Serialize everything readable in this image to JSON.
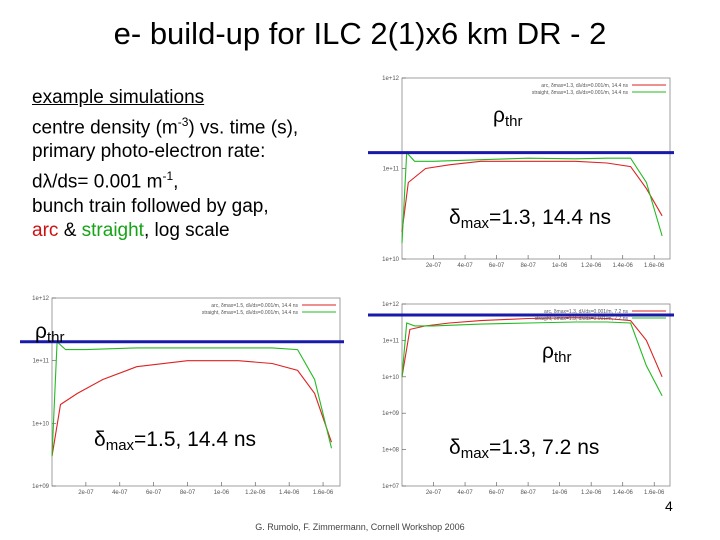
{
  "title": "e- build-up for ILC 2(1)x6 km DR - 2",
  "intro": {
    "line1": "example simulations",
    "line2a": "centre density (m",
    "line2sup": "-3",
    "line2b": ") vs. time (s),",
    "line3": "primary photo-electron rate:",
    "line4a": "dλ/ds= 0.001 m",
    "line4sup": "-1",
    "line4b": ",",
    "line5": "bunch train followed by gap,",
    "arc": "arc",
    "amp": "&",
    "straight": "straight",
    "logscale": ", log scale"
  },
  "labels": {
    "rho_sym": "ρ",
    "rho_sub": "thr",
    "delta_sym": "δ",
    "delta_sub": "max",
    "p1_delta": "=1.3, 14.4 ns",
    "p2_delta": "=1.5, 14.4 ns",
    "p3_delta": "=1.3, 7.2 ns"
  },
  "footer": "G. Rumolo, F. Zimmermann, Cornell Workshop 2006",
  "page_number": "4",
  "colors": {
    "arc": "#dd2222",
    "straight": "#22bb22",
    "threshold": "#1a1aaa"
  },
  "chart_data": [
    {
      "type": "line",
      "legend": [
        "arc, δmax=1.3, dλ/ds=0.001/m, 14.4 ns",
        "straight, δmax=1.3, dλ/ds=0.001/m, 14.4 ns"
      ],
      "legend_position": "top-right",
      "yscale": "log",
      "yticks": [
        "1e+10",
        "1e+11",
        "1e+12"
      ],
      "xticks": [
        "2e-07",
        "4e-07",
        "6e-07",
        "8e-07",
        "1e-06",
        "1.2e-06",
        "1.4e-06",
        "1.6e-06"
      ],
      "xlim": [
        0,
        1.7e-06
      ],
      "ylim": [
        10000000000.0,
        1000000000000.0
      ],
      "threshold": 150000000000.0,
      "series": [
        {
          "name": "arc",
          "x": [
            0,
            4e-08,
            1.5e-07,
            3e-07,
            5e-07,
            8e-07,
            1.1e-06,
            1.3e-06,
            1.45e-06,
            1.55e-06,
            1.65e-06
          ],
          "y": [
            20000000000.0,
            70000000000.0,
            100000000000.0,
            110000000000.0,
            120000000000.0,
            120000000000.0,
            120000000000.0,
            115000000000.0,
            105000000000.0,
            60000000000.0,
            30000000000.0
          ]
        },
        {
          "name": "straight",
          "x": [
            0,
            3e-08,
            8e-08,
            2e-07,
            5e-07,
            8e-07,
            1.1e-06,
            1.3e-06,
            1.45e-06,
            1.55e-06,
            1.65e-06
          ],
          "y": [
            15000000000.0,
            150000000000.0,
            120000000000.0,
            120000000000.0,
            125000000000.0,
            130000000000.0,
            128000000000.0,
            130000000000.0,
            130000000000.0,
            70000000000.0,
            18000000000.0
          ]
        }
      ]
    },
    {
      "type": "line",
      "legend": [
        "arc, δmax=1.5, dλ/ds=0.001/m, 14.4 ns",
        "straight, δmax=1.5, dλ/ds=0.001/m, 14.4 ns"
      ],
      "legend_position": "top-right",
      "yscale": "log",
      "yticks": [
        "1e+09",
        "1e+10",
        "1e+11",
        "1e+12"
      ],
      "xticks": [
        "2e-07",
        "4e-07",
        "6e-07",
        "8e-07",
        "1e-06",
        "1.2e-06",
        "1.4e-06",
        "1.6e-06"
      ],
      "xlim": [
        0,
        1.7e-06
      ],
      "ylim": [
        1000000000.0,
        1000000000000.0
      ],
      "threshold": 200000000000.0,
      "series": [
        {
          "name": "arc",
          "x": [
            0,
            5e-08,
            1.5e-07,
            3e-07,
            5e-07,
            8e-07,
            1.1e-06,
            1.3e-06,
            1.45e-06,
            1.55e-06,
            1.65e-06
          ],
          "y": [
            3000000000.0,
            20000000000.0,
            30000000000.0,
            50000000000.0,
            80000000000.0,
            100000000000.0,
            100000000000.0,
            90000000000.0,
            70000000000.0,
            30000000000.0,
            5000000000.0
          ]
        },
        {
          "name": "straight",
          "x": [
            0,
            3e-08,
            8e-08,
            2e-07,
            5e-07,
            8e-07,
            1.1e-06,
            1.3e-06,
            1.45e-06,
            1.55e-06,
            1.65e-06
          ],
          "y": [
            3000000000.0,
            200000000000.0,
            150000000000.0,
            150000000000.0,
            160000000000.0,
            160000000000.0,
            160000000000.0,
            160000000000.0,
            150000000000.0,
            50000000000.0,
            4000000000.0
          ]
        }
      ]
    },
    {
      "type": "line",
      "legend": [
        "arc, δmax=1.3, dλ/ds=0.001/m, 7.2 ns",
        "straight, δmax=1.3, dλ/ds=0.001/m, 7.2 ns"
      ],
      "legend_position": "top-right",
      "yscale": "log",
      "yticks": [
        "1e+07",
        "1e+08",
        "1e+09",
        "1e+10",
        "1e+11",
        "1e+12"
      ],
      "xticks": [
        "2e-07",
        "4e-07",
        "6e-07",
        "8e-07",
        "1e-06",
        "1.2e-06",
        "1.4e-06",
        "1.6e-06"
      ],
      "xlim": [
        0,
        1.7e-06
      ],
      "ylim": [
        10000000.0,
        1000000000000.0
      ],
      "threshold": 500000000000.0,
      "series": [
        {
          "name": "arc",
          "x": [
            0,
            5e-08,
            1.5e-07,
            3e-07,
            5e-07,
            8e-07,
            1.1e-06,
            1.3e-06,
            1.45e-06,
            1.55e-06,
            1.65e-06
          ],
          "y": [
            10000000000.0,
            200000000000.0,
            250000000000.0,
            300000000000.0,
            350000000000.0,
            400000000000.0,
            420000000000.0,
            400000000000.0,
            350000000000.0,
            100000000000.0,
            10000000000.0
          ]
        },
        {
          "name": "straight",
          "x": [
            0,
            3e-08,
            8e-08,
            2e-07,
            5e-07,
            8e-07,
            1.1e-06,
            1.3e-06,
            1.45e-06,
            1.55e-06,
            1.65e-06
          ],
          "y": [
            10000000000.0,
            300000000000.0,
            250000000000.0,
            250000000000.0,
            280000000000.0,
            300000000000.0,
            320000000000.0,
            320000000000.0,
            300000000000.0,
            20000000000.0,
            3000000000.0
          ]
        }
      ]
    }
  ]
}
